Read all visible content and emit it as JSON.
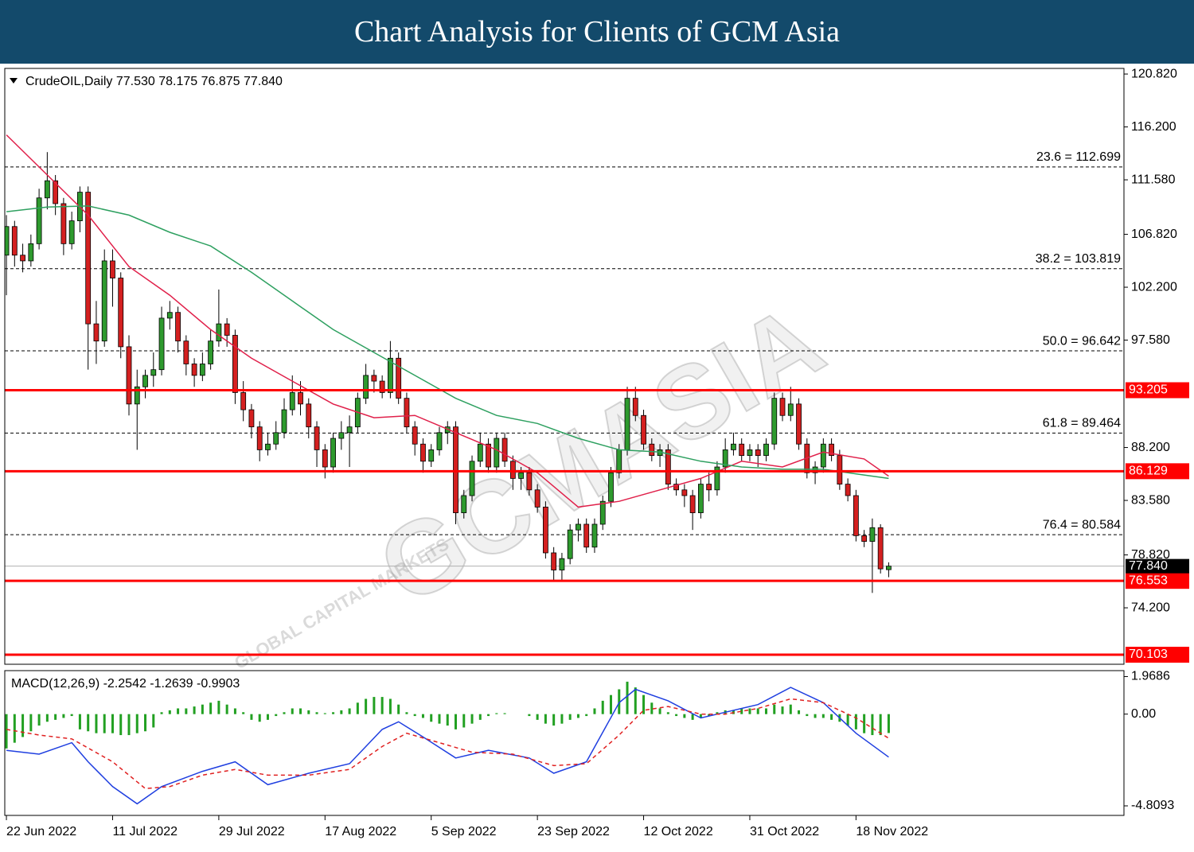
{
  "header": {
    "title": "Chart Analysis for Clients of GCM Asia"
  },
  "watermark": [
    "GCMASIA",
    "GLOBAL CAPITAL MARKETS"
  ],
  "chart_data": [
    {
      "type": "candlestick",
      "info": "CrudeOIL,Daily  77.530 78.175 76.875 77.840",
      "xlim": [
        -0.2,
        136.8
      ],
      "ylim": [
        69.27,
        121.31
      ],
      "yticks": [
        {
          "value": 120.82,
          "label": "120.820"
        },
        {
          "value": 116.2,
          "label": "116.200"
        },
        {
          "value": 111.58,
          "label": "111.580"
        },
        {
          "value": 106.82,
          "label": "106.820"
        },
        {
          "value": 102.2,
          "label": "102.200"
        },
        {
          "value": 97.58,
          "label": "97.580"
        },
        {
          "value": 88.2,
          "label": "88.200"
        },
        {
          "value": 83.58,
          "label": "83.580"
        },
        {
          "value": 78.82,
          "label": "78.820"
        },
        {
          "value": 74.2,
          "label": "74.200"
        }
      ],
      "up_color": "#2e9a2e",
      "down_color": "#d42020",
      "candles": [
        [
          105.0,
          108.5,
          101.5,
          107.5
        ],
        [
          107.5,
          108.0,
          104.0,
          105.0
        ],
        [
          105.0,
          106.0,
          103.5,
          104.5
        ],
        [
          104.5,
          106.8,
          104.0,
          106.0
        ],
        [
          106.0,
          110.8,
          105.5,
          110.0
        ],
        [
          110.0,
          114.0,
          109.0,
          111.5
        ],
        [
          111.5,
          112.0,
          108.5,
          109.5
        ],
        [
          109.5,
          110.0,
          105.0,
          106.0
        ],
        [
          106.0,
          108.8,
          105.5,
          108.0
        ],
        [
          108.0,
          111.0,
          107.0,
          110.5
        ],
        [
          110.5,
          111.0,
          95.0,
          99.0
        ],
        [
          99.0,
          101.0,
          95.5,
          97.5
        ],
        [
          97.5,
          105.5,
          97.0,
          104.5
        ],
        [
          104.5,
          105.5,
          100.5,
          103.0
        ],
        [
          103.0,
          103.5,
          96.0,
          97.0
        ],
        [
          97.0,
          98.0,
          91.0,
          92.0
        ],
        [
          92.0,
          95.0,
          88.0,
          93.5
        ],
        [
          93.5,
          95.0,
          92.5,
          94.5
        ],
        [
          94.5,
          96.5,
          93.5,
          95.0
        ],
        [
          95.0,
          100.5,
          94.5,
          99.5
        ],
        [
          99.5,
          101.0,
          98.5,
          100.0
        ],
        [
          100.0,
          100.5,
          96.5,
          97.5
        ],
        [
          97.5,
          98.0,
          94.5,
          95.5
        ],
        [
          95.5,
          96.0,
          93.5,
          94.5
        ],
        [
          94.5,
          96.5,
          94.0,
          95.5
        ],
        [
          95.5,
          98.5,
          95.0,
          97.5
        ],
        [
          97.5,
          102.0,
          97.0,
          99.0
        ],
        [
          99.0,
          99.5,
          97.0,
          98.0
        ],
        [
          98.0,
          98.5,
          92.0,
          93.0
        ],
        [
          93.0,
          94.0,
          90.5,
          91.5
        ],
        [
          91.5,
          92.0,
          89.0,
          90.0
        ],
        [
          90.0,
          90.5,
          87.0,
          88.0
        ],
        [
          88.0,
          89.5,
          87.5,
          88.5
        ],
        [
          88.5,
          90.5,
          88.0,
          89.5
        ],
        [
          89.5,
          92.5,
          89.0,
          91.5
        ],
        [
          91.5,
          94.5,
          91.0,
          93.0
        ],
        [
          93.0,
          94.0,
          91.0,
          92.0
        ],
        [
          92.0,
          92.5,
          89.0,
          90.0
        ],
        [
          90.0,
          90.5,
          86.5,
          88.0
        ],
        [
          88.0,
          88.5,
          85.5,
          86.5
        ],
        [
          86.5,
          89.5,
          86.0,
          89.0
        ],
        [
          89.0,
          90.5,
          88.0,
          89.5
        ],
        [
          89.5,
          91.0,
          86.5,
          90.0
        ],
        [
          90.0,
          93.0,
          89.5,
          92.5
        ],
        [
          92.5,
          95.5,
          92.0,
          94.5
        ],
        [
          94.5,
          95.0,
          93.0,
          94.0
        ],
        [
          94.0,
          94.5,
          92.5,
          93.0
        ],
        [
          93.0,
          97.5,
          92.5,
          96.0
        ],
        [
          96.0,
          96.5,
          92.0,
          92.5
        ],
        [
          92.5,
          93.0,
          89.5,
          90.0
        ],
        [
          90.0,
          90.5,
          87.5,
          88.5
        ],
        [
          88.5,
          89.0,
          86.0,
          87.0
        ],
        [
          87.0,
          88.5,
          86.5,
          88.0
        ],
        [
          88.0,
          90.0,
          87.5,
          89.5
        ],
        [
          89.5,
          90.5,
          88.5,
          90.0
        ],
        [
          90.0,
          90.5,
          81.5,
          82.5
        ],
        [
          82.5,
          84.5,
          82.0,
          84.0
        ],
        [
          84.0,
          87.5,
          83.5,
          87.0
        ],
        [
          87.0,
          89.5,
          86.5,
          88.5
        ],
        [
          88.5,
          89.0,
          86.0,
          86.5
        ],
        [
          86.5,
          89.5,
          86.0,
          89.0
        ],
        [
          89.0,
          89.5,
          86.5,
          87.0
        ],
        [
          87.0,
          87.5,
          84.5,
          85.5
        ],
        [
          85.5,
          86.5,
          84.5,
          86.0
        ],
        [
          86.0,
          86.5,
          84.0,
          84.5
        ],
        [
          84.5,
          85.0,
          82.5,
          83.0
        ],
        [
          83.0,
          83.5,
          78.5,
          79.0
        ],
        [
          79.0,
          79.5,
          76.5,
          77.5
        ],
        [
          77.5,
          79.0,
          76.6,
          78.5
        ],
        [
          78.5,
          81.5,
          78.0,
          81.0
        ],
        [
          81.0,
          82.0,
          80.0,
          81.5
        ],
        [
          81.5,
          82.0,
          79.0,
          79.5
        ],
        [
          79.5,
          82.0,
          79.0,
          81.5
        ],
        [
          81.5,
          84.0,
          81.0,
          83.5
        ],
        [
          83.5,
          86.5,
          83.0,
          86.0
        ],
        [
          86.0,
          88.5,
          85.5,
          88.0
        ],
        [
          88.0,
          93.5,
          87.5,
          92.5
        ],
        [
          92.5,
          93.5,
          90.5,
          91.0
        ],
        [
          91.0,
          91.5,
          88.0,
          88.5
        ],
        [
          88.5,
          89.0,
          87.0,
          87.5
        ],
        [
          87.5,
          88.5,
          86.5,
          88.0
        ],
        [
          88.0,
          88.5,
          84.5,
          85.0
        ],
        [
          85.0,
          85.5,
          84.0,
          84.5
        ],
        [
          84.5,
          85.0,
          83.0,
          84.0
        ],
        [
          84.0,
          84.5,
          81.0,
          82.5
        ],
        [
          82.5,
          85.5,
          82.0,
          85.0
        ],
        [
          85.0,
          86.0,
          83.5,
          84.5
        ],
        [
          84.5,
          87.0,
          84.0,
          86.5
        ],
        [
          86.5,
          89.0,
          86.0,
          88.0
        ],
        [
          88.0,
          89.5,
          87.5,
          88.5
        ],
        [
          88.5,
          89.0,
          87.0,
          87.5
        ],
        [
          87.5,
          88.5,
          87.0,
          88.0
        ],
        [
          88.0,
          88.5,
          86.5,
          87.5
        ],
        [
          87.5,
          89.0,
          87.0,
          88.5
        ],
        [
          88.5,
          93.0,
          88.0,
          92.5
        ],
        [
          92.5,
          93.0,
          90.5,
          91.0
        ],
        [
          91.0,
          93.5,
          90.5,
          92.0
        ],
        [
          92.0,
          92.5,
          88.0,
          88.5
        ],
        [
          88.5,
          89.0,
          85.5,
          86.0
        ],
        [
          86.0,
          87.0,
          85.0,
          86.5
        ],
        [
          86.5,
          89.0,
          86.0,
          88.5
        ],
        [
          88.5,
          89.0,
          87.0,
          87.5
        ],
        [
          87.5,
          88.0,
          84.5,
          85.0
        ],
        [
          85.0,
          85.5,
          83.5,
          84.0
        ],
        [
          84.0,
          84.5,
          80.0,
          80.5
        ],
        [
          80.5,
          81.0,
          79.5,
          80.0
        ],
        [
          80.0,
          82.0,
          75.5,
          81.2
        ],
        [
          81.2,
          81.5,
          77.2,
          77.6
        ],
        [
          77.53,
          78.175,
          76.875,
          77.84
        ]
      ],
      "series": [
        {
          "color": "#e0204a",
          "x": [
            0,
            5,
            10,
            15,
            20,
            25,
            30,
            35,
            40,
            45,
            50,
            55,
            60,
            65,
            70,
            75,
            80,
            85,
            90,
            95,
            100,
            105,
            108
          ],
          "values": [
            115.5,
            112,
            108.5,
            104,
            101.5,
            98.5,
            96,
            94,
            92,
            90.8,
            91,
            89.5,
            88,
            86,
            83,
            83.5,
            84.5,
            85.5,
            87,
            86.5,
            87.8,
            87.2,
            85.7
          ]
        },
        {
          "color": "#2ea060",
          "x": [
            0,
            5,
            10,
            15,
            20,
            25,
            30,
            35,
            40,
            45,
            50,
            55,
            60,
            65,
            70,
            75,
            80,
            85,
            90,
            95,
            100,
            105,
            108
          ],
          "values": [
            108.8,
            109.2,
            109.3,
            108.5,
            107,
            105.8,
            103.5,
            101,
            98.5,
            96.5,
            94.5,
            92.5,
            91,
            90.3,
            89,
            88,
            87.8,
            87,
            86.5,
            86.3,
            86.3,
            85.8,
            85.5
          ]
        }
      ],
      "fib_levels": [
        {
          "value": 112.699,
          "label": "23.6 = 112.699"
        },
        {
          "value": 103.819,
          "label": "38.2 = 103.819"
        },
        {
          "value": 96.642,
          "label": "50.0 = 96.642"
        },
        {
          "value": 89.464,
          "label": "61.8 = 89.464"
        },
        {
          "value": 80.584,
          "label": "76.4 = 80.584"
        }
      ],
      "levels": [
        93.205,
        86.129,
        76.553,
        70.103
      ],
      "level_color": "#ff0000",
      "last_price": {
        "value": 77.84,
        "label": "77.840"
      }
    },
    {
      "type": "macd",
      "title": "MACD(12,26,9) -2.2542 -1.2639 -0.9903",
      "xlim": [
        -0.2,
        136.8
      ],
      "ylim": [
        -5.31,
        2.28
      ],
      "yticks": [
        1.9686,
        {
          "value": 0,
          "label": "0.00"
        },
        -4.8093
      ],
      "xticks": [
        {
          "value": 0,
          "label": "22 Jun 2022"
        },
        {
          "value": 13,
          "label": "11 Jul 2022"
        },
        {
          "value": 26,
          "label": "29 Jul 2022"
        },
        {
          "value": 39,
          "label": "17 Aug 2022"
        },
        {
          "value": 52,
          "label": "5 Sep 2022"
        },
        {
          "value": 65,
          "label": "23 Sep 2022"
        },
        {
          "value": 78,
          "label": "12 Oct 2022"
        },
        {
          "value": 91,
          "label": "31 Oct 2022"
        },
        {
          "value": 104,
          "label": "18 Nov 2022"
        }
      ],
      "histogram_color": "#22a022",
      "histogram": [
        -1.8,
        -1.5,
        -1.2,
        -0.9,
        -0.6,
        -0.4,
        -0.3,
        -0.2,
        -0.1,
        -0.8,
        -0.9,
        -1.0,
        -1.0,
        -1.0,
        -1.1,
        -1.1,
        -1.0,
        -0.9,
        -0.7,
        0.1,
        0.2,
        0.3,
        0.3,
        0.4,
        0.5,
        0.6,
        0.7,
        0.5,
        0.3,
        0.1,
        -0.3,
        -0.4,
        -0.3,
        -0.1,
        0.1,
        0.3,
        0.3,
        0.2,
        0.1,
        0.05,
        0.1,
        0.2,
        0.3,
        0.6,
        0.8,
        0.9,
        0.9,
        0.8,
        0.5,
        0.1,
        -0.1,
        -0.2,
        -0.4,
        -0.5,
        -0.6,
        -0.8,
        -0.7,
        -0.5,
        -0.3,
        -0.1,
        0.05,
        0.05,
        0,
        0,
        -0.1,
        -0.3,
        -0.5,
        -0.6,
        -0.5,
        -0.3,
        -0.2,
        -0.1,
        0.3,
        0.7,
        1.0,
        1.3,
        1.7,
        1.4,
        1.0,
        0.6,
        0.3,
        0.1,
        -0.1,
        -0.2,
        -0.3,
        -0.2,
        -0.1,
        0.1,
        0.2,
        0.2,
        0.3,
        0.3,
        0.3,
        0.3,
        0.5,
        0.4,
        0.5,
        0.2,
        -0.1,
        -0.2,
        -0.2,
        -0.3,
        -0.4,
        -0.6,
        -0.8,
        -1.0,
        -1.1,
        -1.1,
        -0.9903
      ],
      "series": [
        {
          "color": "#1f3fe0",
          "dash": false,
          "x": [
            0,
            4,
            8,
            10,
            13,
            16,
            19,
            24,
            28,
            32,
            37,
            42,
            46,
            48,
            51,
            55,
            59,
            64,
            67,
            71,
            75,
            77,
            81,
            85,
            88,
            92,
            96,
            100,
            104,
            108
          ],
          "values": [
            -1.9,
            -2.1,
            -1.5,
            -2.5,
            -3.8,
            -4.7,
            -3.8,
            -3.0,
            -2.5,
            -3.7,
            -3.1,
            -2.6,
            -0.8,
            -0.4,
            -1.2,
            -2.3,
            -1.9,
            -2.3,
            -3.1,
            -2.5,
            0.6,
            1.3,
            0.7,
            -0.2,
            0.1,
            0.5,
            1.4,
            0.6,
            -1.0,
            -2.2542
          ]
        },
        {
          "color": "#e02020",
          "dash": true,
          "x": [
            0,
            4,
            8,
            13,
            17,
            20,
            24,
            28,
            32,
            37,
            42,
            46,
            49,
            53,
            57,
            62,
            67,
            71,
            75,
            78,
            81,
            85,
            88,
            92,
            96,
            100,
            104,
            108
          ],
          "values": [
            -0.8,
            -1.1,
            -1.3,
            -2.5,
            -3.9,
            -3.8,
            -3.2,
            -2.9,
            -3.2,
            -3.2,
            -2.9,
            -1.7,
            -1.0,
            -1.5,
            -2.0,
            -2.1,
            -2.7,
            -2.6,
            -1.1,
            0.2,
            0.4,
            0.0,
            0.0,
            0.3,
            0.8,
            0.6,
            -0.2,
            -1.2639
          ]
        }
      ]
    }
  ]
}
